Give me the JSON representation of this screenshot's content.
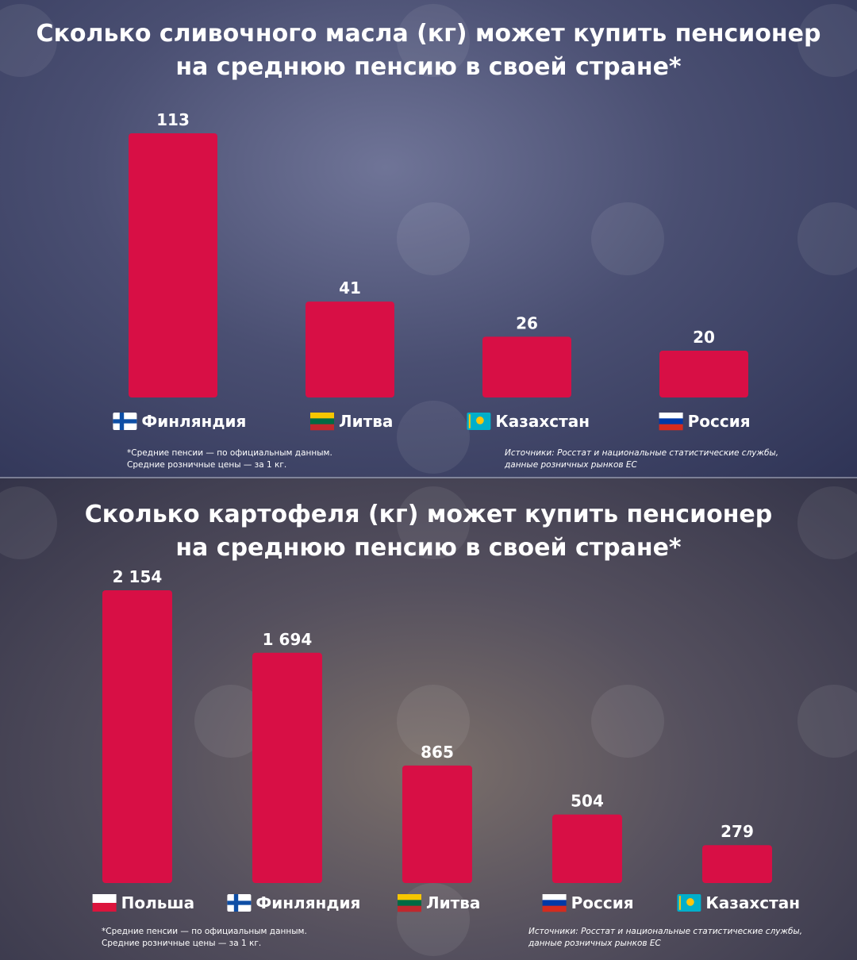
{
  "charts": [
    {
      "title_lines": [
        "Сколько сливочного масла (кг) может купить пенсионер",
        "на среднюю пенсию в своей стране*"
      ],
      "note_lines": [
        "*Средние пенсии — по официальным данным.",
        "Средние розничные цены — за 1 кг."
      ],
      "source_lines": [
        "Источники: Росстат и национальные статистические службы,",
        "данные розничных рынков ЕС"
      ]
    },
    {
      "title_lines": [
        "Сколько картофеля (кг) может купить пенсионер",
        "на среднюю пенсию в своей стране*"
      ],
      "note_lines": [
        "*Средние пенсии — по официальным данным.",
        "Средние розничные цены — за 1 кг."
      ],
      "source_lines": [
        "Источники: Росстат и национальные статистические службы,",
        "данные розничных рынков ЕС"
      ]
    }
  ],
  "flags": {
    "finland-flag-icon": [
      "#ffffff",
      "#0e4ea5"
    ],
    "lithuania-flag-icon": [
      "#f7c600",
      "#006a44",
      "#c1272d"
    ],
    "kazakhstan-flag-icon": [
      "#00afca",
      "#fec50c"
    ],
    "russia-flag-icon": [
      "#ffffff",
      "#0039a6",
      "#d52b1e"
    ],
    "poland-flag-icon": [
      "#ffffff",
      "#dc143c"
    ]
  },
  "chart_data": [
    {
      "type": "bar",
      "categories": [
        "Финляндия",
        "Литва",
        "Казахстан",
        "Россия"
      ],
      "values": [
        113,
        41,
        26,
        20
      ],
      "value_labels": [
        "113",
        "41",
        "26",
        "20"
      ],
      "flag_icons": [
        "finland-flag-icon",
        "lithuania-flag-icon",
        "kazakhstan-flag-icon",
        "russia-flag-icon"
      ],
      "bar_color": "#d80f45",
      "ylim": [
        0,
        113
      ]
    },
    {
      "type": "bar",
      "categories": [
        "Польша",
        "Финляндия",
        "Литва",
        "Россия",
        "Казахстан"
      ],
      "values": [
        2154,
        1694,
        865,
        504,
        279
      ],
      "value_labels": [
        "2 154",
        "1 694",
        "865",
        "504",
        "279"
      ],
      "flag_icons": [
        "poland-flag-icon",
        "finland-flag-icon",
        "lithuania-flag-icon",
        "russia-flag-icon",
        "kazakhstan-flag-icon"
      ],
      "bar_color": "#d80f45",
      "ylim": [
        0,
        2154
      ]
    }
  ]
}
